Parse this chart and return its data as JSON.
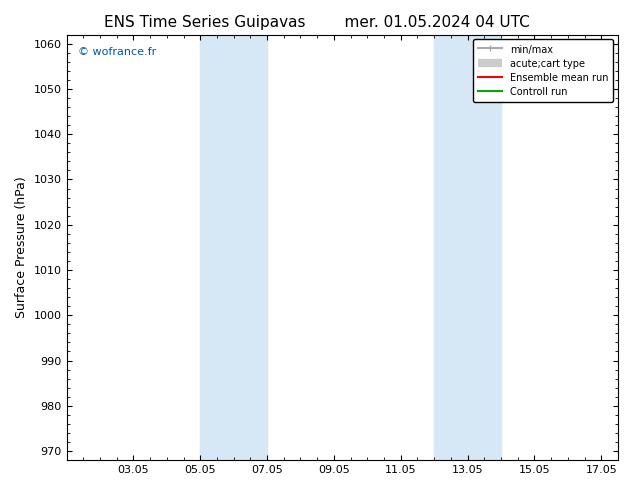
{
  "title_left": "ENS Time Series Guipavas",
  "title_right": "mer. 01.05.2024 04 UTC",
  "ylabel": "Surface Pressure (hPa)",
  "ylim": [
    968,
    1062
  ],
  "yticks": [
    970,
    980,
    990,
    1000,
    1010,
    1020,
    1030,
    1040,
    1050,
    1060
  ],
  "xlim_start": "2024-05-01",
  "xlim_end": "2024-05-17 12:00",
  "xtick_labels": [
    "03.05",
    "05.05",
    "07.05",
    "09.05",
    "11.05",
    "13.05",
    "15.05",
    "17.05"
  ],
  "xtick_positions": [
    2,
    4,
    6,
    8,
    10,
    12,
    14,
    16
  ],
  "shaded_regions": [
    {
      "xstart": 4,
      "xend": 6
    },
    {
      "xstart": 11,
      "xend": 13
    }
  ],
  "shaded_color": "#d6e8f5",
  "background_color": "#ffffff",
  "watermark": "© wofrance.fr",
  "watermark_color": "#0055aa",
  "legend_items": [
    {
      "label": "min/max",
      "color": "#aaaaaa",
      "lw": 1.5
    },
    {
      "label": "acute;cart type",
      "color": "#cccccc",
      "lw": 6
    },
    {
      "label": "Ensemble mean run",
      "color": "#ff0000",
      "lw": 1.5
    },
    {
      "label": "Controll run",
      "color": "#00aa00",
      "lw": 1.5
    }
  ],
  "title_fontsize": 11,
  "axis_label_fontsize": 9,
  "tick_fontsize": 8
}
